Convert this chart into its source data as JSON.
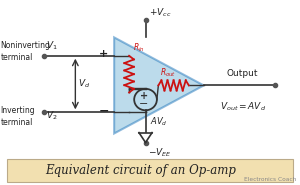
{
  "bg_color": "#ffffff",
  "triangle_color": "#7ab8d9",
  "triangle_alpha": 0.5,
  "border_color": "#2277bb",
  "line_color": "#333333",
  "resistor_color": "#cc1111",
  "text_color": "#222222",
  "title_bg": "#f2e0b0",
  "title_text": "Equivalent circuit of an Op-amp",
  "title_fontsize": 8.5,
  "watermark": "Electronics Coach",
  "noninv_label": "Noninverting\nterminal",
  "inv_label": "Inverting\nterminal"
}
